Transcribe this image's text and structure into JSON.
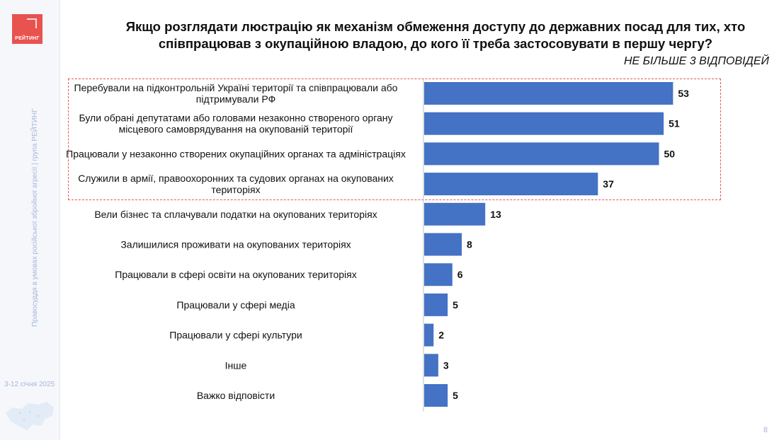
{
  "brand": {
    "logo_text": "РЕЙТИНГ"
  },
  "sidebar": {
    "vertical_text": "Правосуддя в умовах російської збройної агресії | група РЕЙТИНГ",
    "date": "3-12 січня 2025"
  },
  "page_number": "8",
  "chart_data": {
    "type": "bar",
    "orientation": "horizontal",
    "title": "Якщо розглядати люстрацію як механізм обмеження доступу до державних посад для тих, хто співпрацював з окупаційною владою, до кого її треба застосовувати в першу чергу?",
    "subtitle": "НЕ БІЛЬШЕ 3 ВІДПОВІДЕЙ",
    "categories": [
      "Перебували на підконтрольній Україні території та співпрацювали або підтримували РФ",
      "Були обрані депутатами або головами незаконно створеного органу місцевого самоврядування на окупованій території",
      "Працювали у незаконно створених окупаційних органах та адміністраціях",
      "Служили в армії, правоохоронних та судових органах на окупованих територіях",
      "Вели бізнес та сплачували податки на окупованих територіях",
      "Залишилися проживати на окупованих територіях",
      "Працювали в сфері освіти на окупованих територіях",
      "Працювали у сфері медіа",
      "Працювали у сфері культури",
      "Інше",
      "Важко відповісти"
    ],
    "values": [
      53,
      51,
      50,
      37,
      13,
      8,
      6,
      5,
      2,
      3,
      5
    ],
    "highlighted_top": 4,
    "bar_color": "#4472c4",
    "highlight_color": "#e2565a"
  }
}
